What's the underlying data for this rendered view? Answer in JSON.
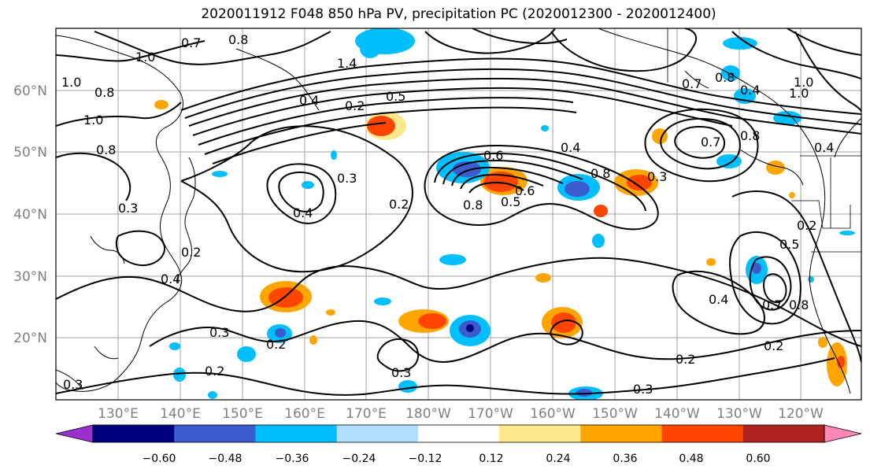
{
  "title": "2020011912 F048 850 hPa PV, precipitation PC (2020012300 - 2020012400)",
  "lat_labels": [
    "60°N",
    "50°N",
    "40°N",
    "30°N",
    "20°N"
  ],
  "lon_labels": [
    "130°E",
    "140°E",
    "150°E",
    "160°E",
    "170°E",
    "180°W",
    "170°W",
    "160°W",
    "150°W",
    "140°W",
    "130°W",
    "120°W"
  ],
  "contour_labels": [
    "1.0",
    "0.7",
    "0.8",
    "1.4",
    "1.0",
    "0.8",
    "1.0",
    "0.4",
    "0.2",
    "0.5",
    "0.6",
    "0.4",
    "0.8",
    "0.3",
    "0.2",
    "0.3",
    "0.4",
    "0.6",
    "0.8",
    "0.5",
    "0.4",
    "0.8",
    "0.3",
    "0.7",
    "0.7",
    "0.8",
    "1.0",
    "0.4",
    "0.5",
    "0.4",
    "0.7",
    "0.8",
    "0.3",
    "0.2",
    "0.2",
    "0.2",
    "0.3",
    "0.2",
    "0.3",
    "0.2",
    "0.4",
    "0.2",
    "1.0",
    "0.8",
    "0.3"
  ],
  "colorbar": {
    "colors": [
      "#9932cc",
      "#000080",
      "#3a5ccc",
      "#00bfff",
      "#b0e0ff",
      "#ffffff",
      "#ffe88a",
      "#ffa500",
      "#ff4500",
      "#b22222",
      "#ff88b5"
    ],
    "tick_labels": [
      "−0.60",
      "−0.48",
      "−0.36",
      "−0.24",
      "−0.12",
      "0.12",
      "0.24",
      "0.36",
      "0.48",
      "0.60"
    ]
  },
  "colors": {
    "grid": "#a0a0a0",
    "contour": "#000000",
    "coast": "#000000",
    "axis_label": "#808080"
  }
}
